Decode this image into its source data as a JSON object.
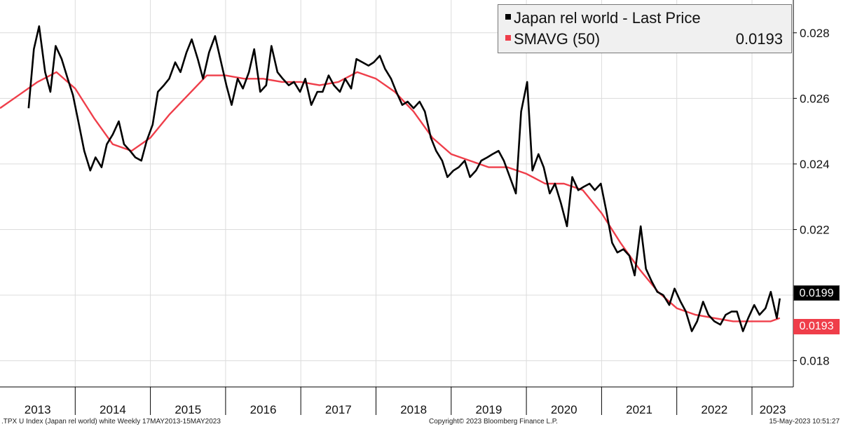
{
  "chart_data": {
    "type": "line",
    "series": [
      {
        "name": "Japan rel world - Last Price",
        "color": "#000000",
        "x": [
          2013.38,
          2013.45,
          2013.52,
          2013.6,
          2013.67,
          2013.74,
          2013.82,
          2013.9,
          2013.97,
          2014.05,
          2014.12,
          2014.2,
          2014.27,
          2014.35,
          2014.42,
          2014.5,
          2014.58,
          2014.65,
          2014.73,
          2014.8,
          2014.88,
          2014.95,
          2015.03,
          2015.1,
          2015.18,
          2015.25,
          2015.33,
          2015.4,
          2015.48,
          2015.55,
          2015.63,
          2015.7,
          2015.78,
          2015.86,
          2015.93,
          2016.01,
          2016.08,
          2016.16,
          2016.23,
          2016.31,
          2016.38,
          2016.46,
          2016.54,
          2016.61,
          2016.69,
          2016.76,
          2016.84,
          2016.91,
          2016.99,
          2017.06,
          2017.14,
          2017.22,
          2017.29,
          2017.37,
          2017.44,
          2017.52,
          2017.59,
          2017.67,
          2017.74,
          2017.82,
          2017.9,
          2017.97,
          2018.05,
          2018.12,
          2018.2,
          2018.27,
          2018.35,
          2018.42,
          2018.5,
          2018.58,
          2018.65,
          2018.73,
          2018.8,
          2018.88,
          2018.95,
          2019.03,
          2019.1,
          2019.18,
          2019.25,
          2019.33,
          2019.4,
          2019.48,
          2019.55,
          2019.63,
          2019.7,
          2019.78,
          2019.86,
          2019.93,
          2020.01,
          2020.08,
          2020.16,
          2020.23,
          2020.31,
          2020.38,
          2020.46,
          2020.54,
          2020.61,
          2020.69,
          2020.76,
          2020.84,
          2020.91,
          2020.99,
          2021.06,
          2021.14,
          2021.21,
          2021.29,
          2021.37,
          2021.44,
          2021.52,
          2021.59,
          2021.67,
          2021.74,
          2021.82,
          2021.9,
          2021.97,
          2022.05,
          2022.12,
          2022.2,
          2022.27,
          2022.35,
          2022.42,
          2022.5,
          2022.58,
          2022.65,
          2022.73,
          2022.8,
          2022.88,
          2022.95,
          2023.03,
          2023.1,
          2023.18,
          2023.25,
          2023.33,
          2023.37
        ],
        "values": [
          0.0257,
          0.0275,
          0.0282,
          0.0268,
          0.0262,
          0.0276,
          0.0272,
          0.0266,
          0.0261,
          0.0252,
          0.0244,
          0.0238,
          0.0242,
          0.0239,
          0.0246,
          0.0249,
          0.0253,
          0.0246,
          0.0244,
          0.0242,
          0.0241,
          0.0247,
          0.0252,
          0.0262,
          0.0264,
          0.0266,
          0.0271,
          0.0268,
          0.0274,
          0.0278,
          0.0272,
          0.0266,
          0.0274,
          0.0279,
          0.0272,
          0.0264,
          0.0258,
          0.0266,
          0.0263,
          0.0268,
          0.0275,
          0.0262,
          0.0264,
          0.0276,
          0.0268,
          0.0266,
          0.0264,
          0.0265,
          0.0262,
          0.0266,
          0.0258,
          0.0262,
          0.0262,
          0.0267,
          0.0264,
          0.0262,
          0.0266,
          0.0263,
          0.0272,
          0.0271,
          0.027,
          0.0271,
          0.0273,
          0.0269,
          0.0266,
          0.0262,
          0.0258,
          0.0259,
          0.0257,
          0.0259,
          0.0256,
          0.0248,
          0.0244,
          0.0241,
          0.0236,
          0.0238,
          0.0239,
          0.0241,
          0.0236,
          0.0238,
          0.0241,
          0.0242,
          0.0243,
          0.0244,
          0.0241,
          0.0236,
          0.0231,
          0.0256,
          0.0265,
          0.0238,
          0.0243,
          0.0239,
          0.0231,
          0.0234,
          0.0228,
          0.0221,
          0.0236,
          0.0232,
          0.0233,
          0.0234,
          0.0232,
          0.0234,
          0.0226,
          0.0216,
          0.0213,
          0.0214,
          0.0212,
          0.0206,
          0.0221,
          0.0208,
          0.0204,
          0.0201,
          0.02,
          0.0197,
          0.0202,
          0.0198,
          0.0195,
          0.0189,
          0.0192,
          0.0198,
          0.0194,
          0.0192,
          0.0191,
          0.0194,
          0.0195,
          0.0195,
          0.0189,
          0.0193,
          0.0197,
          0.0194,
          0.0196,
          0.0201,
          0.0193,
          0.0199
        ],
        "last_value": "0.0199"
      },
      {
        "name": "SMAVG (50)",
        "color": "#ef3e4a",
        "x": [
          2013.0,
          2013.25,
          2013.5,
          2013.75,
          2014.0,
          2014.25,
          2014.5,
          2014.75,
          2015.0,
          2015.25,
          2015.5,
          2015.75,
          2016.0,
          2016.25,
          2016.5,
          2016.75,
          2017.0,
          2017.25,
          2017.5,
          2017.75,
          2018.0,
          2018.25,
          2018.5,
          2018.75,
          2019.0,
          2019.25,
          2019.5,
          2019.75,
          2020.0,
          2020.25,
          2020.5,
          2020.75,
          2021.0,
          2021.25,
          2021.5,
          2021.75,
          2022.0,
          2022.25,
          2022.5,
          2022.75,
          2023.0,
          2023.25,
          2023.37
        ],
        "values": [
          0.0257,
          0.0261,
          0.0265,
          0.0268,
          0.0263,
          0.0254,
          0.0246,
          0.0244,
          0.0248,
          0.0255,
          0.0261,
          0.0267,
          0.0267,
          0.0266,
          0.0266,
          0.0265,
          0.0265,
          0.0264,
          0.0265,
          0.0268,
          0.0266,
          0.0262,
          0.0256,
          0.0248,
          0.0243,
          0.0241,
          0.0239,
          0.0239,
          0.0237,
          0.0234,
          0.0234,
          0.0232,
          0.0225,
          0.0216,
          0.0208,
          0.0201,
          0.0196,
          0.0194,
          0.0193,
          0.0192,
          0.0192,
          0.0192,
          0.0193
        ],
        "last_value": "0.0193"
      }
    ],
    "xlim": [
      2013.0,
      2023.55
    ],
    "ylim": [
      0.0172,
      0.029
    ],
    "yticks": [
      0.018,
      0.02,
      0.022,
      0.024,
      0.026,
      0.028
    ],
    "ytick_labels": [
      "0.018",
      "0.02",
      "0.022",
      "0.024",
      "0.026",
      "0.028"
    ],
    "xtick_labels": [
      "2013",
      "2014",
      "2015",
      "2016",
      "2017",
      "2018",
      "2019",
      "2020",
      "2021",
      "2022",
      "2023"
    ],
    "grid": true,
    "legend_position": "top-right",
    "legend_value": "0.0193"
  },
  "footer": {
    "left": ".TPX U Index (Japan rel world) white  Weekly 17MAY2013-15MAY2023",
    "center": "Copyright© 2023 Bloomberg Finance L.P.",
    "right": "15-May-2023 10:51:27"
  }
}
